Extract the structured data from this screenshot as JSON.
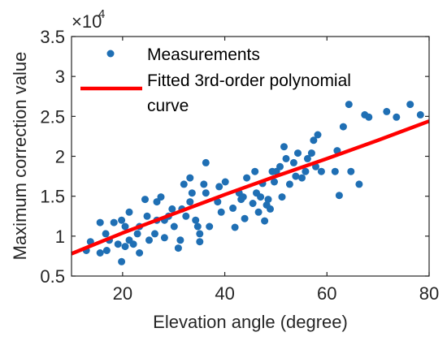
{
  "chart_data": {
    "type": "scatter",
    "title": "",
    "xlabel": "Elevation angle (degree)",
    "ylabel": "Maximum correction value",
    "xlim": [
      10,
      80
    ],
    "ylim": [
      0.5,
      3.5
    ],
    "xticks": [
      "20",
      "40",
      "60",
      "80"
    ],
    "xtick_values": [
      20,
      40,
      60,
      80
    ],
    "yticks": [
      "0.5",
      "1",
      "1.5",
      "2",
      "2.5",
      "3",
      "3.5"
    ],
    "ytick_values": [
      0.5,
      1,
      1.5,
      2,
      2.5,
      3,
      3.5
    ],
    "y_exponent": {
      "base": "×10",
      "power": "4"
    },
    "grid": false,
    "legend_position": "top-left",
    "series": [
      {
        "name": "Measurements",
        "kind": "scatter",
        "color": "#1f6fb4",
        "x": [
          12.9,
          13.7,
          15.6,
          15.6,
          16.7,
          16.9,
          17.4,
          18.3,
          19.1,
          19.8,
          19.8,
          20.5,
          20.5,
          21.3,
          21.3,
          22.1,
          22.9,
          23.3,
          23.3,
          24.4,
          24.8,
          25.2,
          26.3,
          26.7,
          26.7,
          27.5,
          28.2,
          28.2,
          29.0,
          29.7,
          30.1,
          30.9,
          31.3,
          31.6,
          32.0,
          32.4,
          33.2,
          33.2,
          33.6,
          34.3,
          34.7,
          35.1,
          35.1,
          35.9,
          36.3,
          36.3,
          37.0,
          38.6,
          38.9,
          39.3,
          40.1,
          41.6,
          42.0,
          42.8,
          43.2,
          43.6,
          43.9,
          44.3,
          45.5,
          45.9,
          46.2,
          46.6,
          47.0,
          47.4,
          47.8,
          48.2,
          48.5,
          48.9,
          49.3,
          49.7,
          50.1,
          50.8,
          51.2,
          51.6,
          52.0,
          52.7,
          53.5,
          53.9,
          54.3,
          55.1,
          55.8,
          56.2,
          57.0,
          57.4,
          57.8,
          58.2,
          58.9,
          61.6,
          62.0,
          62.4,
          63.2,
          64.3,
          64.7,
          66.3,
          67.4,
          68.2,
          71.7,
          73.6,
          76.3,
          78.3
        ],
        "y": [
          0.82,
          0.93,
          1.17,
          0.79,
          1.03,
          0.82,
          0.95,
          1.17,
          0.9,
          1.2,
          0.68,
          1.12,
          0.87,
          1.3,
          0.95,
          0.9,
          1.03,
          1.12,
          0.79,
          1.46,
          1.25,
          0.95,
          1.03,
          1.43,
          1.2,
          1.49,
          1.2,
          0.98,
          1.25,
          1.34,
          1.12,
          0.85,
          0.95,
          1.34,
          1.65,
          1.25,
          1.73,
          1.43,
          1.54,
          1.2,
          1.12,
          0.93,
          1.03,
          1.65,
          1.54,
          1.92,
          1.12,
          1.43,
          1.62,
          1.3,
          1.68,
          1.35,
          1.11,
          1.54,
          1.46,
          1.49,
          1.22,
          1.73,
          1.41,
          1.81,
          1.54,
          1.3,
          1.49,
          1.66,
          1.19,
          1.39,
          1.46,
          1.34,
          1.81,
          1.68,
          1.81,
          1.87,
          1.49,
          2.12,
          1.97,
          1.65,
          1.92,
          1.75,
          2.04,
          1.73,
          1.81,
          1.97,
          2.04,
          2.2,
          1.87,
          2.27,
          1.81,
          1.81,
          2.07,
          1.51,
          2.37,
          2.65,
          1.81,
          1.65,
          2.52,
          2.49,
          2.56,
          2.49,
          2.65,
          2.52
        ]
      },
      {
        "name": "Fitted 3rd-order polynomial curve",
        "kind": "line",
        "color": "#ff0000",
        "x": [
          10,
          20,
          30,
          40,
          50,
          60,
          70,
          80
        ],
        "y": [
          0.78,
          1.04,
          1.28,
          1.52,
          1.75,
          1.97,
          2.2,
          2.44
        ]
      }
    ],
    "legend": {
      "measurements": "Measurements",
      "fit_line1": "Fitted 3rd-order polynomial",
      "fit_line2": "curve"
    }
  }
}
